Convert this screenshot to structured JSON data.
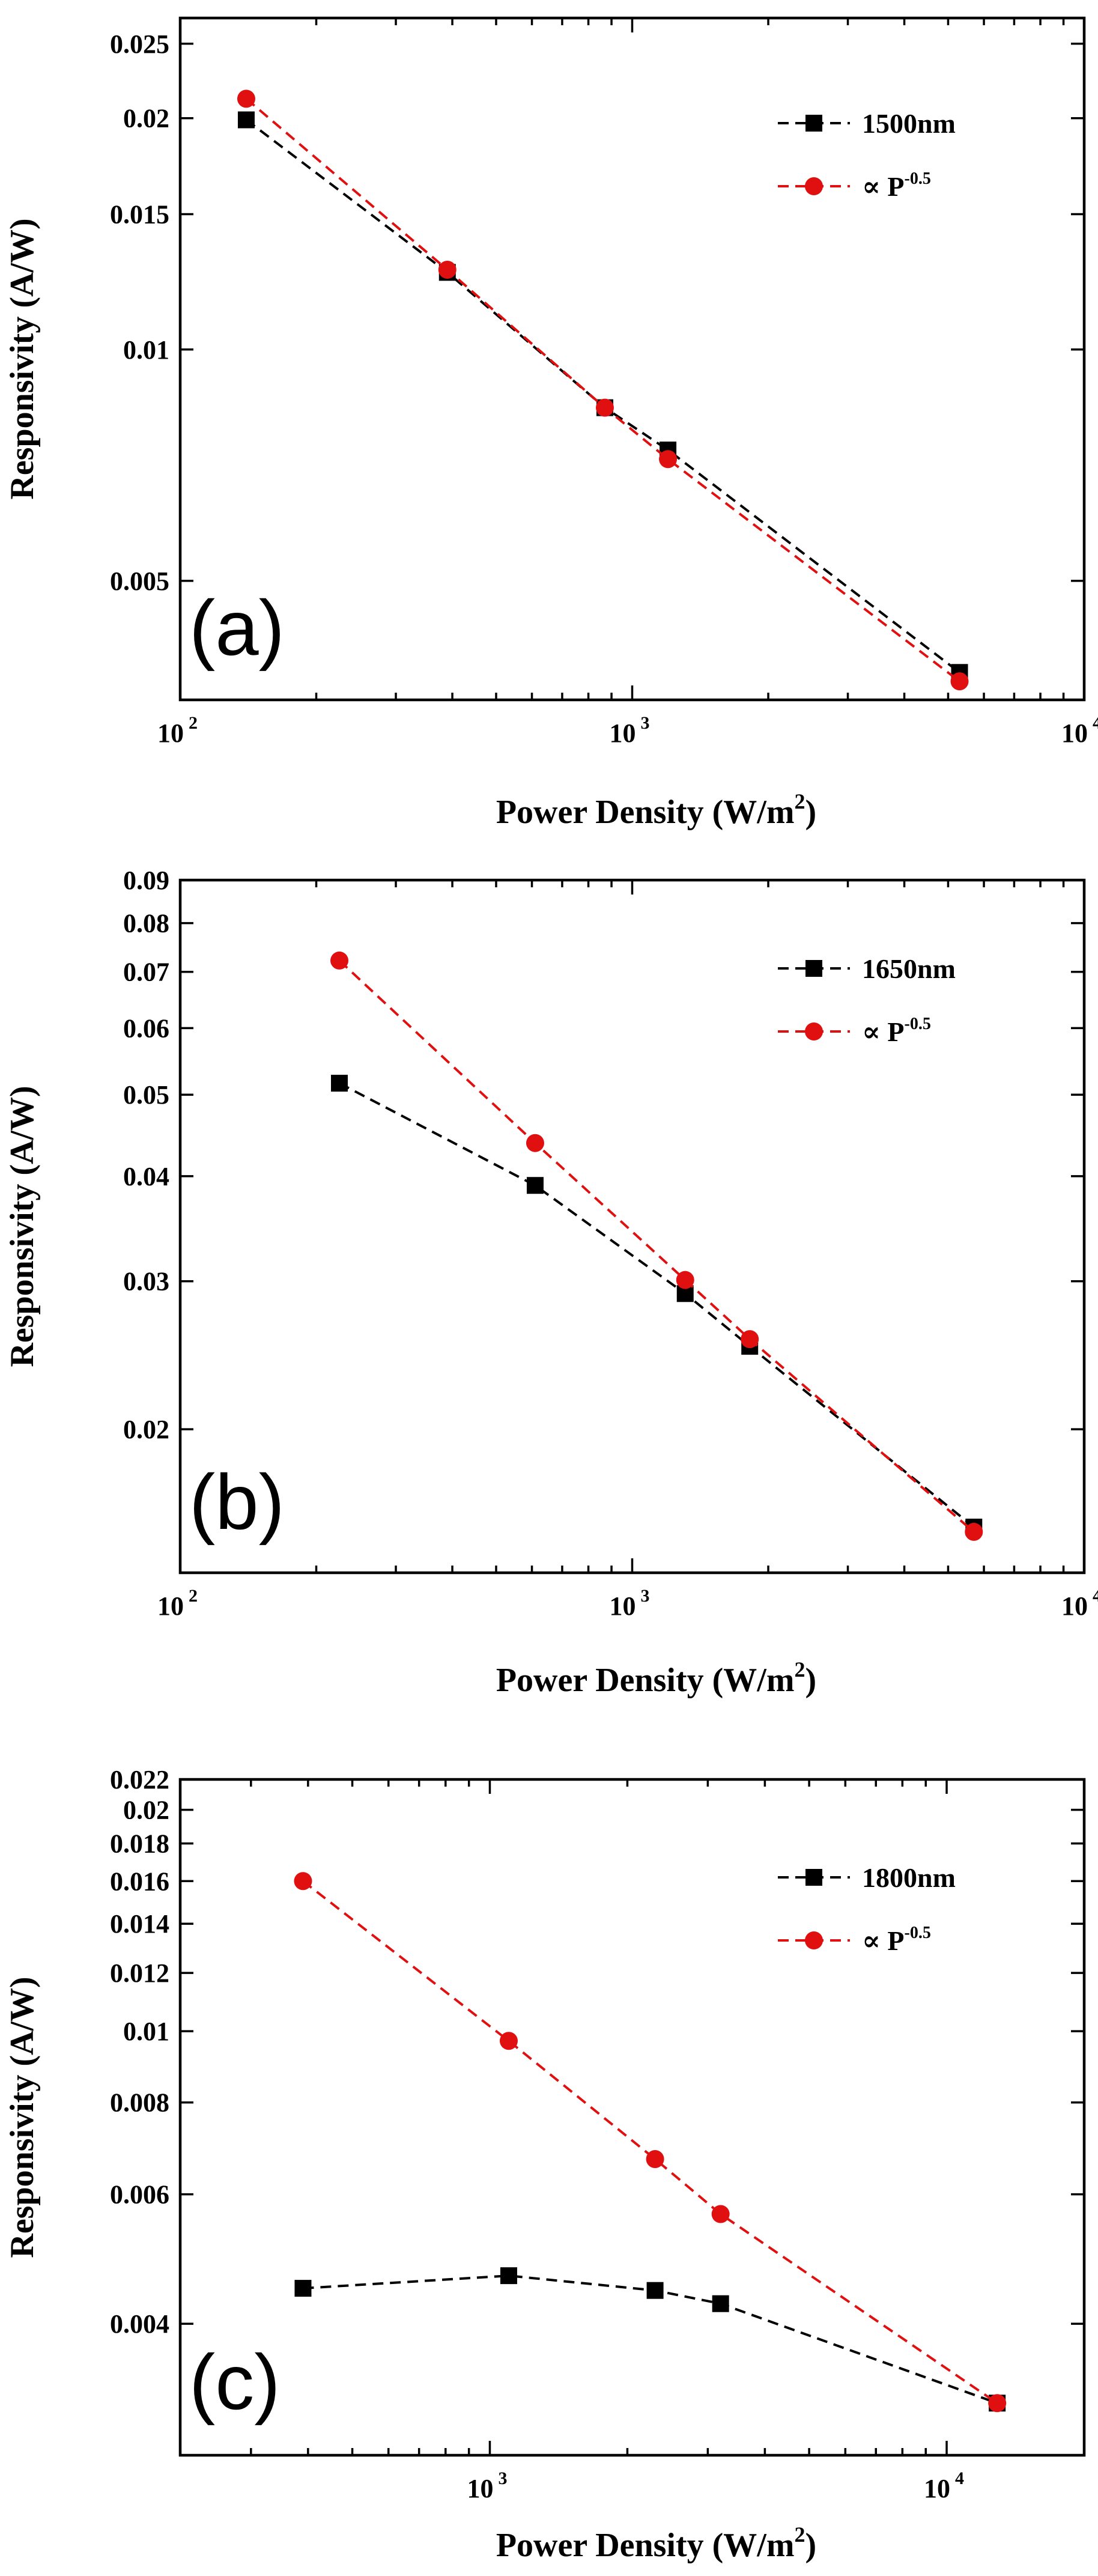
{
  "chart_data": [
    {
      "type": "line",
      "panel_label": "(a)",
      "xlabel": "Power Density (W/m",
      "xlabel_sup": "2",
      "xlabel_end": ")",
      "ylabel": "Responsivity (A/W)",
      "xscale": "log",
      "yscale": "log",
      "xlim": [
        100,
        10000
      ],
      "ylim": [
        0.0035,
        0.027
      ],
      "x_ticks": [
        {
          "value": 100,
          "base": "10",
          "exp": "2"
        },
        {
          "value": 1000,
          "base": "10",
          "exp": "3"
        },
        {
          "value": 10000,
          "base": "10",
          "exp": "4"
        }
      ],
      "y_ticks": [
        {
          "value": 0.025,
          "label": "0.025"
        },
        {
          "value": 0.02,
          "label": "0.02"
        },
        {
          "value": 0.015,
          "label": "0.015"
        },
        {
          "value": 0.01,
          "label": "0.01"
        },
        {
          "value": 0.005,
          "label": "0.005"
        }
      ],
      "legend_position": "top-right",
      "series": [
        {
          "name": "1500nm",
          "legend_label": "1500nm",
          "marker": "square",
          "color": "#000000",
          "x": [
            140,
            390,
            870,
            1200,
            5300
          ],
          "y": [
            0.0199,
            0.0126,
            0.0084,
            0.0074,
            0.0038
          ]
        },
        {
          "name": "P^-0.5",
          "legend_label": "∝ P",
          "legend_sup": "-0.5",
          "marker": "circle",
          "color": "#e01010",
          "x": [
            140,
            390,
            870,
            1200,
            5300
          ],
          "y": [
            0.0212,
            0.0127,
            0.0084,
            0.0072,
            0.0037
          ]
        }
      ]
    },
    {
      "type": "line",
      "panel_label": "(b)",
      "xlabel": "Power Density (W/m",
      "xlabel_sup": "2",
      "xlabel_end": ")",
      "ylabel": "Responsivity (A/W)",
      "xscale": "log",
      "yscale": "log",
      "xlim": [
        100,
        10000
      ],
      "ylim": [
        0.0135,
        0.09
      ],
      "x_ticks": [
        {
          "value": 100,
          "base": "10",
          "exp": "2"
        },
        {
          "value": 1000,
          "base": "10",
          "exp": "3"
        },
        {
          "value": 10000,
          "base": "10",
          "exp": "4"
        }
      ],
      "y_ticks": [
        {
          "value": 0.09,
          "label": "0.09"
        },
        {
          "value": 0.08,
          "label": "0.08"
        },
        {
          "value": 0.07,
          "label": "0.07"
        },
        {
          "value": 0.06,
          "label": "0.06"
        },
        {
          "value": 0.05,
          "label": "0.05"
        },
        {
          "value": 0.04,
          "label": "0.04"
        },
        {
          "value": 0.03,
          "label": "0.03"
        },
        {
          "value": 0.02,
          "label": "0.02"
        }
      ],
      "legend_position": "top-right",
      "series": [
        {
          "name": "1650nm",
          "legend_label": "1650nm",
          "marker": "square",
          "color": "#000000",
          "x": [
            225,
            610,
            1310,
            1820,
            5700
          ],
          "y": [
            0.0516,
            0.039,
            0.029,
            0.0251,
            0.0153
          ]
        },
        {
          "name": "P^-0.5",
          "legend_label": "∝ P",
          "legend_sup": "-0.5",
          "marker": "circle",
          "color": "#e01010",
          "x": [
            225,
            610,
            1310,
            1820,
            5700
          ],
          "y": [
            0.0722,
            0.0438,
            0.0301,
            0.0256,
            0.0151
          ]
        }
      ]
    },
    {
      "type": "line",
      "panel_label": "(c)",
      "xlabel": "Power Density (W/m",
      "xlabel_sup": "2",
      "xlabel_end": ")",
      "ylabel": "Responsivity (A/W)",
      "xscale": "log",
      "yscale": "log",
      "xlim": [
        210,
        20000
      ],
      "ylim": [
        0.00265,
        0.022
      ],
      "x_ticks": [
        {
          "value": 1000,
          "base": "10",
          "exp": "3"
        },
        {
          "value": 10000,
          "base": "10",
          "exp": "4"
        }
      ],
      "y_ticks": [
        {
          "value": 0.022,
          "label": "0.022"
        },
        {
          "value": 0.02,
          "label": "0.02"
        },
        {
          "value": 0.018,
          "label": "0.018"
        },
        {
          "value": 0.016,
          "label": "0.016"
        },
        {
          "value": 0.014,
          "label": "0.014"
        },
        {
          "value": 0.012,
          "label": "0.012"
        },
        {
          "value": 0.01,
          "label": "0.01"
        },
        {
          "value": 0.008,
          "label": "0.008"
        },
        {
          "value": 0.006,
          "label": "0.006"
        },
        {
          "value": 0.004,
          "label": "0.004"
        }
      ],
      "legend_position": "top-right",
      "series": [
        {
          "name": "1800nm",
          "legend_label": "1800nm",
          "marker": "square",
          "color": "#000000",
          "x": [
            390,
            1100,
            2300,
            3200,
            12900
          ],
          "y": [
            0.00447,
            0.00465,
            0.00444,
            0.00426,
            0.00312
          ]
        },
        {
          "name": "P^-0.5",
          "legend_label": "∝ P",
          "legend_sup": "-0.5",
          "marker": "circle",
          "color": "#e01010",
          "x": [
            390,
            1100,
            2300,
            3200,
            12900
          ],
          "y": [
            0.016,
            0.0097,
            0.0067,
            0.00564,
            0.00312
          ]
        }
      ]
    }
  ]
}
